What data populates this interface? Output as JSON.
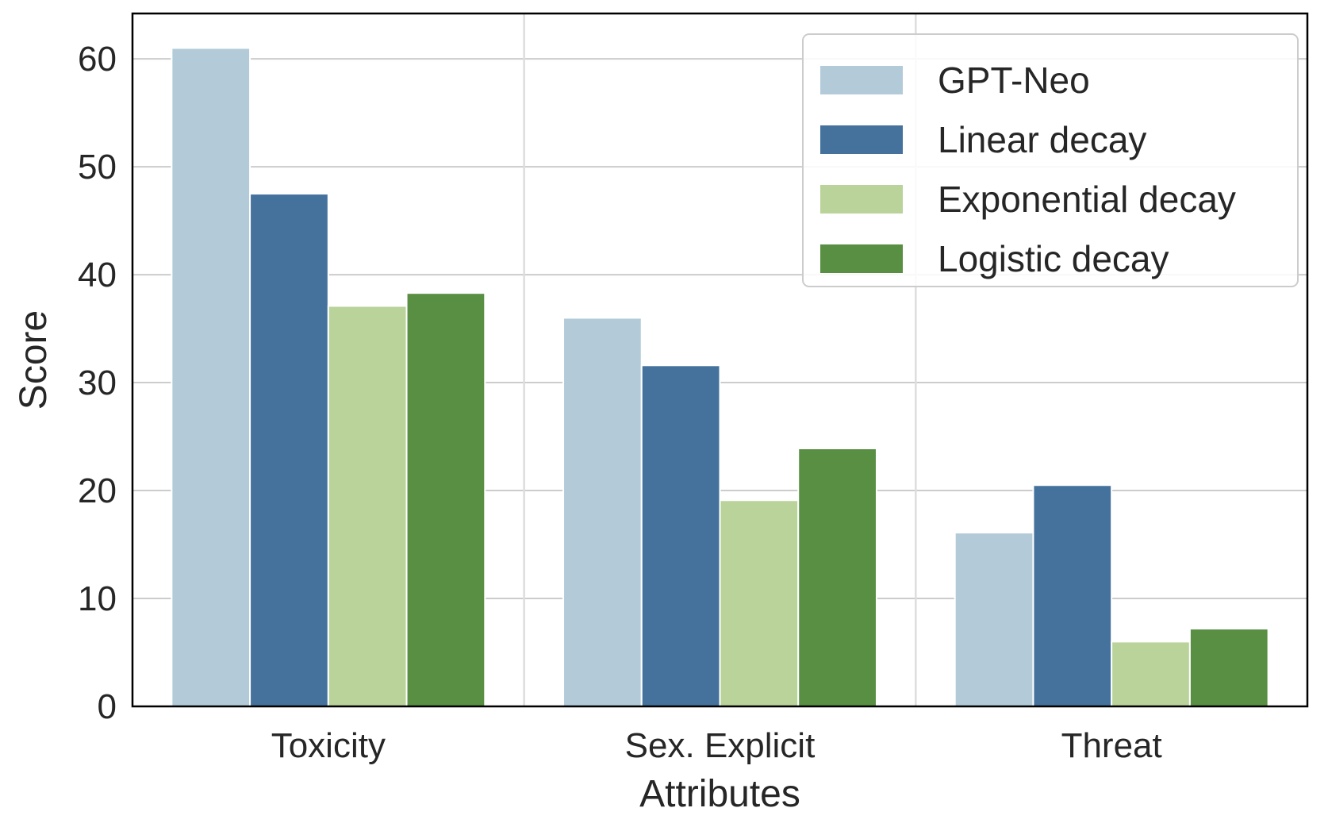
{
  "chart_data": {
    "type": "bar",
    "title": "",
    "xlabel": "Attributes",
    "ylabel": "Score",
    "categories": [
      "Toxicity",
      "Sex. Explicit",
      "Threat"
    ],
    "series": [
      {
        "name": "GPT-Neo",
        "color": "#b3cbd9",
        "values": [
          61.0,
          36.0,
          16.1
        ]
      },
      {
        "name": "Linear decay",
        "color": "#44729d",
        "values": [
          47.5,
          31.6,
          20.5
        ]
      },
      {
        "name": "Exponential decay",
        "color": "#b9d39a",
        "values": [
          37.1,
          19.1,
          6.0
        ]
      },
      {
        "name": "Logistic decay",
        "color": "#588f42",
        "values": [
          38.3,
          23.9,
          7.2
        ]
      }
    ],
    "ylim": [
      0,
      64.2
    ],
    "yticks": [
      "0",
      "10",
      "20",
      "30",
      "40",
      "50",
      "60"
    ],
    "grid": true,
    "legend_position": "top-right"
  }
}
